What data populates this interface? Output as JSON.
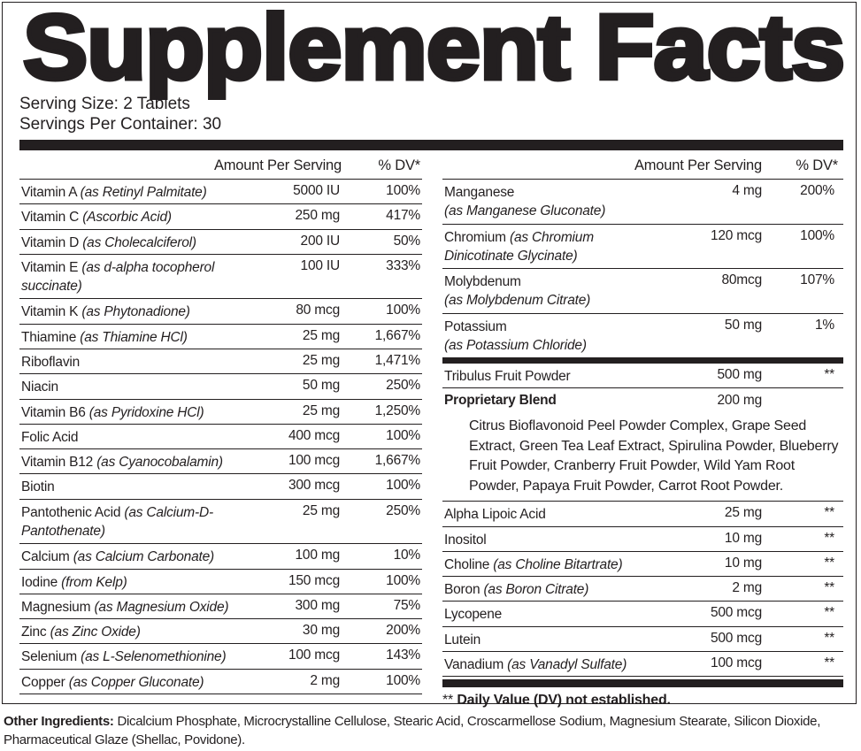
{
  "title": "Supplement Facts",
  "serving_size": "Serving Size: 2 Tablets",
  "servings_per_container": "Servings Per Container: 30",
  "headers": {
    "amount": "Amount Per Serving",
    "dv": "% DV*"
  },
  "left_rows": [
    {
      "name": "Vitamin A ",
      "source": "(as Retinyl Palmitate)",
      "amount": "5000 IU",
      "dv": "100%"
    },
    {
      "name": "Vitamin C ",
      "source": "(Ascorbic Acid)",
      "amount": "250 mg",
      "dv": "417%"
    },
    {
      "name": "Vitamin D ",
      "source": "(as Cholecalciferol)",
      "amount": "200 IU",
      "dv": "50%"
    },
    {
      "name": "Vitamin E ",
      "source": "(as d-alpha tocopherol succinate)",
      "amount": "100 IU",
      "dv": "333%",
      "double": true
    },
    {
      "name": "Vitamin K ",
      "source": "(as Phytonadione)",
      "amount": "80 mcg",
      "dv": "100%"
    },
    {
      "name": "Thiamine ",
      "source": "(as Thiamine HCl)",
      "amount": "25 mg",
      "dv": "1,667%"
    },
    {
      "name": "Riboflavin",
      "source": "",
      "amount": "25 mg",
      "dv": "1,471%"
    },
    {
      "name": "Niacin",
      "source": "",
      "amount": "50 mg",
      "dv": "250%"
    },
    {
      "name": "Vitamin B6 ",
      "source": "(as Pyridoxine HCl)",
      "amount": "25 mg",
      "dv": "1,250%"
    },
    {
      "name": "Folic Acid",
      "source": "",
      "amount": "400 mcg",
      "dv": "100%"
    },
    {
      "name": "Vitamin B12 ",
      "source": "(as Cyanocobalamin)",
      "amount": "100 mcg",
      "dv": "1,667%"
    },
    {
      "name": "Biotin",
      "source": "",
      "amount": "300 mcg",
      "dv": "100%"
    },
    {
      "name": "Pantothenic Acid ",
      "source": "(as Calcium-D-Pantothenate)",
      "amount": "25 mg",
      "dv": "250%",
      "double": true
    },
    {
      "name": "Calcium ",
      "source": "(as Calcium Carbonate)",
      "amount": "100 mg",
      "dv": "10%"
    },
    {
      "name": "Iodine ",
      "source": "(from Kelp)",
      "amount": "150 mcg",
      "dv": "100%"
    },
    {
      "name": "Magnesium ",
      "source": "(as Magnesium Oxide)",
      "amount": "300 mg",
      "dv": "75%"
    },
    {
      "name": "Zinc ",
      "source": "(as Zinc Oxide)",
      "amount": "30 mg",
      "dv": "200%"
    },
    {
      "name": "Selenium ",
      "source": "(as L-Selenomethionine)",
      "amount": "100 mcg",
      "dv": "143%"
    },
    {
      "name": "Copper ",
      "source": "(as Copper Gluconate)",
      "amount": "2 mg",
      "dv": "100%"
    }
  ],
  "right_rows_top": [
    {
      "name": "Manganese",
      "source": "(as Manganese Gluconate)",
      "amount": "4 mg",
      "dv": "200%",
      "double": true,
      "break": true
    },
    {
      "name": "Chromium ",
      "source": "(as Chromium Dinicotinate Glycinate)",
      "amount": "120 mcg",
      "dv": "100%",
      "double": true
    },
    {
      "name": "Molybdenum",
      "source": "(as Molybdenum Citrate)",
      "amount": "80mcg",
      "dv": "107%",
      "double": true,
      "break": true
    },
    {
      "name": "Potassium",
      "source": "(as Potassium Chloride)",
      "amount": "50 mg",
      "dv": "1%",
      "double": true,
      "break": true
    }
  ],
  "tribulus": {
    "name": "Tribulus Fruit Powder",
    "source": "",
    "amount": "500 mg",
    "dv": "**"
  },
  "blend": {
    "name": "Proprietary Blend",
    "amount": "200 mg",
    "ingredients": "Citrus Bioflavonoid Peel Powder Complex, Grape Seed Extract, Green Tea Leaf Extract, Spirulina Powder, Blueberry Fruit Powder, Cranberry Fruit Powder, Wild Yam Root Powder, Papaya Fruit Powder, Carrot Root Powder."
  },
  "right_rows_bottom": [
    {
      "name": "Alpha Lipoic Acid",
      "source": "",
      "amount": "25 mg",
      "dv": "**"
    },
    {
      "name": "Inositol",
      "source": "",
      "amount": "10 mg",
      "dv": "**"
    },
    {
      "name": "Choline ",
      "source": "(as Choline Bitartrate)",
      "amount": "10 mg",
      "dv": "**"
    },
    {
      "name": "Boron ",
      "source": "(as Boron Citrate)",
      "amount": "2 mg",
      "dv": "**"
    },
    {
      "name": "Lycopene",
      "source": "",
      "amount": "500 mcg",
      "dv": "**"
    },
    {
      "name": "Lutein",
      "source": "",
      "amount": "500 mcg",
      "dv": "**"
    },
    {
      "name": "Vanadium ",
      "source": "(as Vanadyl Sulfate)",
      "amount": "100 mcg",
      "dv": "**"
    }
  ],
  "footnote": {
    "stars": "** ",
    "text": "Daily Value (DV) not established."
  },
  "other_ingredients": {
    "label": "Other Ingredients: ",
    "text": "Dicalcium Phosphate, Microcrystalline Cellulose, Stearic Acid, Croscarmellose Sodium, Magnesium Stearate, Silicon Dioxide, Pharmaceutical Glaze (Shellac, Povidone)."
  }
}
